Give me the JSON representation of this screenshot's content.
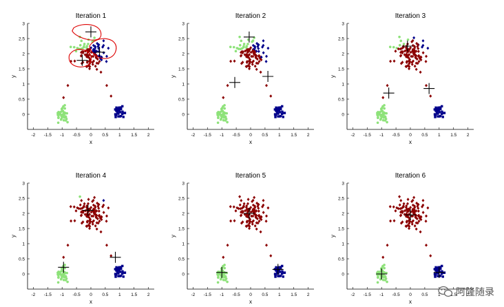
{
  "figure": {
    "watermark": "阿隆随录"
  },
  "colors": {
    "green": "#8ee27a",
    "dark_red": "#8b0000",
    "navy": "#00008b",
    "centroid": "#000000",
    "annotation": "#dd0000"
  },
  "chart_data": [
    {
      "type": "scatter",
      "title": "Iteration 1",
      "xlabel": "x",
      "ylabel": "y",
      "xlim": [
        -2.2,
        2.2
      ],
      "ylim": [
        -0.5,
        3
      ],
      "xticks": [
        "-2",
        "-1.5",
        "-1",
        "-0.5",
        "0",
        "0.5",
        "1",
        "1.5",
        "2"
      ],
      "yticks": [
        "0",
        "0.5",
        "1",
        "1.5",
        "2",
        "2.5",
        "3"
      ],
      "grid": false,
      "centroids": [
        [
          -0.3,
          1.78
        ],
        [
          0.0,
          2.72
        ],
        [
          0.3,
          2.05
        ]
      ],
      "assignment": {
        "green_points_in_top_cluster": 20,
        "blue_points_in_top_cluster": 32,
        "bottom_right_cluster": "navy"
      },
      "annotations": [
        "red hand-drawn loops around the three initial centroids"
      ]
    },
    {
      "type": "scatter",
      "title": "Iteration 2",
      "xlabel": "x",
      "ylabel": "y",
      "xlim": [
        -2.2,
        2.2
      ],
      "ylim": [
        -0.5,
        3
      ],
      "xticks": [
        "-2",
        "-1.5",
        "-1",
        "-0.5",
        "0",
        "0.5",
        "1",
        "1.5",
        "2"
      ],
      "yticks": [
        "0",
        "0.5",
        "1",
        "1.5",
        "2",
        "2.5",
        "3"
      ],
      "grid": false,
      "centroids": [
        [
          -0.55,
          1.05
        ],
        [
          -0.05,
          2.55
        ],
        [
          0.6,
          1.25
        ]
      ],
      "assignment": {
        "green_points_in_top_cluster": 20,
        "blue_points_in_top_cluster": 20,
        "bottom_right_cluster": "navy"
      }
    },
    {
      "type": "scatter",
      "title": "Iteration 3",
      "xlabel": "x",
      "ylabel": "y",
      "xlim": [
        -2.2,
        2.2
      ],
      "ylim": [
        -0.5,
        3
      ],
      "xticks": [
        "-2",
        "-1.5",
        "-1",
        "-0.5",
        "0",
        "0.5",
        "1",
        "1.5",
        "2"
      ],
      "yticks": [
        "0",
        "0.5",
        "1",
        "1.5",
        "2",
        "2.5",
        "3"
      ],
      "grid": false,
      "centroids": [
        [
          -0.75,
          0.7
        ],
        [
          -0.1,
          2.25
        ],
        [
          0.65,
          0.85
        ]
      ],
      "assignment": {
        "green_points_in_top_cluster": 8,
        "blue_points_in_top_cluster": 6,
        "bottom_right_cluster": "navy"
      }
    },
    {
      "type": "scatter",
      "title": "Iteration 4",
      "xlabel": "x",
      "ylabel": "y",
      "xlim": [
        -2.2,
        2.2
      ],
      "ylim": [
        -0.5,
        3
      ],
      "xticks": [
        "-2",
        "-1.5",
        "-1",
        "-0.5",
        "0",
        "0.5",
        "1",
        "1.5",
        "2"
      ],
      "yticks": [
        "0",
        "0.5",
        "1",
        "1.5",
        "2",
        "2.5",
        "3"
      ],
      "grid": false,
      "centroids": [
        [
          -0.95,
          0.22
        ],
        [
          -0.1,
          2.1
        ],
        [
          0.85,
          0.55
        ]
      ],
      "assignment": {
        "green_points_in_top_cluster": 1,
        "blue_points_in_top_cluster": 1,
        "bottom_right_cluster": "navy"
      }
    },
    {
      "type": "scatter",
      "title": "Iteration 5",
      "xlabel": "x",
      "ylabel": "y",
      "xlim": [
        -2.2,
        2.2
      ],
      "ylim": [
        -0.5,
        3
      ],
      "xticks": [
        "-2",
        "-1.5",
        "-1",
        "-0.5",
        "0",
        "0.5",
        "1",
        "1.5",
        "2"
      ],
      "yticks": [
        "0",
        "0.5",
        "1",
        "1.5",
        "2",
        "2.5",
        "3"
      ],
      "grid": false,
      "centroids": [
        [
          -1.0,
          0.05
        ],
        [
          -0.05,
          2.0
        ],
        [
          0.95,
          0.15
        ]
      ],
      "assignment": {
        "green_points_in_top_cluster": 0,
        "blue_points_in_top_cluster": 0,
        "bottom_right_cluster": "navy"
      }
    },
    {
      "type": "scatter",
      "title": "Iteration 6",
      "xlabel": "x",
      "ylabel": "y",
      "xlim": [
        -2.2,
        2.2
      ],
      "ylim": [
        -0.5,
        3
      ],
      "xticks": [
        "-2",
        "-1.5",
        "-1",
        "-0.5",
        "0",
        "0.5",
        "1",
        "1.5",
        "2"
      ],
      "yticks": [
        "0",
        "0.5",
        "1",
        "1.5",
        "2",
        "2.5",
        "3"
      ],
      "grid": false,
      "centroids": [
        [
          -1.0,
          0.0
        ],
        [
          0.0,
          1.95
        ],
        [
          1.0,
          0.05
        ]
      ],
      "assignment": {
        "green_points_in_top_cluster": 0,
        "blue_points_in_top_cluster": 0,
        "bottom_right_cluster": "navy"
      }
    }
  ]
}
